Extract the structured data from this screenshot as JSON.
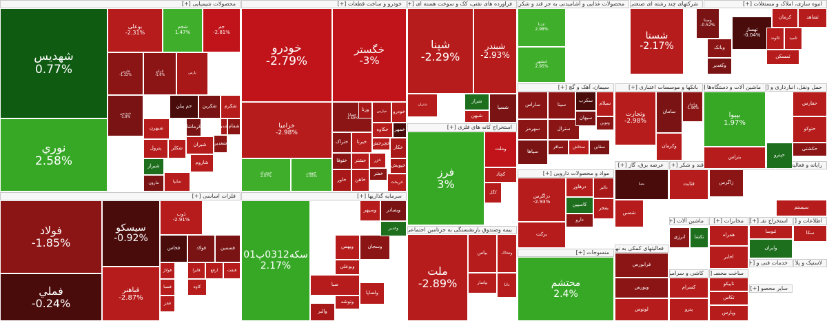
{
  "sectors": [
    {
      "id": "s1",
      "label": "محصولات شیمیایی [+]"
    },
    {
      "id": "s2",
      "label": "خودرو و ساخت قطعات [+]"
    },
    {
      "id": "s3",
      "label": "فراورده های نفتی، کک و سوخت هسته ای [+]"
    },
    {
      "id": "s4",
      "label": "محصولات غذایی و آشامیدنی به جز قند و شکر [+]"
    },
    {
      "id": "s5",
      "label": "شرکتهای چند رشته ای صنعتی [+]"
    },
    {
      "id": "s6",
      "label": "انبوه سازی، املاک و مستغلات [+]"
    },
    {
      "id": "s7",
      "label": "فلزات اساسی [+]"
    },
    {
      "id": "s8",
      "label": "سرمایه گذاریها [+]"
    },
    {
      "id": "s9",
      "label": "استخراج کانه های فلزی [+]"
    },
    {
      "id": "s10",
      "label": "سیمان، آهک و گچ [+]"
    },
    {
      "id": "s11",
      "label": "بانکها و موسسات اعتباری [+]"
    },
    {
      "id": "s12",
      "label": "ماشین آلات و دستگاه‌ها [+]"
    },
    {
      "id": "s13",
      "label": "حمل ونقل، انبارداری و [+]"
    },
    {
      "id": "s14",
      "label": "مواد و محصولات دارویی [+]"
    },
    {
      "id": "s15",
      "label": "عرضه برق، گاز [+]"
    },
    {
      "id": "s16",
      "label": "قند و شکر [+]"
    },
    {
      "id": "s17",
      "label": "زراعت و خدمات [+]"
    },
    {
      "id": "s18",
      "label": "رایانه و فعالیتهای [+]"
    },
    {
      "id": "s19",
      "label": "بیمه وصندوق بازنشستگی به جزتامین اجتماعی [+]"
    },
    {
      "id": "s20",
      "label": "منسوجات [+]"
    },
    {
      "id": "s21",
      "label": "فعالیتهای کمکی به نهـ [+]"
    },
    {
      "id": "s22",
      "label": "ماشین آلات [+]"
    },
    {
      "id": "s23",
      "label": "مخابرات [+]"
    },
    {
      "id": "s24",
      "label": "استخراج نفـ [+]"
    },
    {
      "id": "s25",
      "label": "اطلاعات و [+]"
    },
    {
      "id": "s26",
      "label": "خدمات فنی و [+]"
    },
    {
      "id": "s27",
      "label": "ساخت محصـ [+]"
    },
    {
      "id": "s28",
      "label": "کاشی و سرامیک [+]"
    },
    {
      "id": "s29",
      "label": "سایر محصو [+]"
    },
    {
      "id": "s30",
      "label": "لاستیک و پلا [+]"
    }
  ],
  "tiles": [
    {
      "id": "t1",
      "symbol": "شهدیس",
      "change": "0.77%",
      "color": "#0f5b12",
      "fs": 17
    },
    {
      "id": "t2",
      "symbol": "نوري",
      "change": "2.58%",
      "color": "#37a826",
      "fs": 17
    },
    {
      "id": "t3",
      "symbol": "بوعلی",
      "change": "-2.31%",
      "color": "#b71c1c",
      "fs": 8
    },
    {
      "id": "t4",
      "symbol": "شجم",
      "change": "1.47%",
      "color": "#3fae2a",
      "fs": 7
    },
    {
      "id": "t5",
      "symbol": "جم",
      "change": "-2.81%",
      "color": "#c0141a",
      "fs": 7
    },
    {
      "id": "t6",
      "symbol": "فارس",
      "change": "-1.32%",
      "color": "#8b1414",
      "fs": 5
    },
    {
      "id": "t7",
      "symbol": "تاپیکو",
      "change": "-1.6%",
      "color": "#8b1414",
      "fs": 5
    },
    {
      "id": "t8",
      "symbol": "پارس",
      "change": "",
      "color": "#a81818",
      "fs": 5
    },
    {
      "id": "t9",
      "symbol": "شپدیس",
      "change": "-1.9%",
      "color": "#7a1414",
      "fs": 5
    },
    {
      "id": "t10",
      "symbol": "جم پیلن",
      "change": "",
      "color": "#4a0b0b",
      "fs": 7
    },
    {
      "id": "t11",
      "symbol": "شکربن",
      "change": "",
      "color": "#7a1414",
      "fs": 7
    },
    {
      "id": "t12",
      "symbol": "شکرم",
      "change": "",
      "color": "#b71c1c",
      "fs": 7
    },
    {
      "id": "t13",
      "symbol": "شفام",
      "change": "",
      "color": "#8b1414",
      "fs": 7
    },
    {
      "id": "t14",
      "symbol": "شبهرن",
      "change": "",
      "color": "#b71c1c",
      "fs": 7
    },
    {
      "id": "t15",
      "symbol": "شدو",
      "change": "",
      "color": "#a81818",
      "fs": 6
    },
    {
      "id": "t16",
      "symbol": "پترول",
      "change": "",
      "color": "#b71c1c",
      "fs": 7
    },
    {
      "id": "t17",
      "symbol": "کرماشا",
      "change": "",
      "color": "#7a1414",
      "fs": 7
    },
    {
      "id": "t18",
      "symbol": "شکلر",
      "change": "",
      "color": "#b71c1c",
      "fs": 7
    },
    {
      "id": "t19",
      "symbol": "شیران",
      "change": "",
      "color": "#b71c1c",
      "fs": 7
    },
    {
      "id": "t20",
      "symbol": "شغدیر",
      "change": "",
      "color": "#8b1414",
      "fs": 7
    },
    {
      "id": "t21",
      "symbol": "شاروم",
      "change": "",
      "color": "#b71c1c",
      "fs": 7
    },
    {
      "id": "t22",
      "symbol": "شیراز",
      "change": "",
      "color": "#1d6e1d",
      "fs": 7
    },
    {
      "id": "t23",
      "symbol": "سایپا",
      "change": "",
      "color": "#b71c1c",
      "fs": 6
    },
    {
      "id": "t24",
      "symbol": "ماروں",
      "change": "",
      "color": "#7a1414",
      "fs": 6
    },
    {
      "id": "t25",
      "symbol": "خودرو",
      "change": "-2.79%",
      "color": "#c0141a",
      "fs": 17
    },
    {
      "id": "t26",
      "symbol": "خگستر",
      "change": "-3%",
      "color": "#c0141a",
      "fs": 15
    },
    {
      "id": "t27",
      "symbol": "خزامیا",
      "change": "-2.98%",
      "color": "#b71c1c",
      "fs": 9
    },
    {
      "id": "t28",
      "symbol": "خساپا",
      "change": "-1.69%",
      "color": "#8b1414",
      "fs": 5
    },
    {
      "id": "t29",
      "symbol": "خپارس",
      "change": "",
      "color": "#a81818",
      "fs": 5
    },
    {
      "id": "t30",
      "symbol": "خمحرکه",
      "change": "2.07%",
      "color": "#3fae2a",
      "fs": 5
    },
    {
      "id": "t31",
      "symbol": "خبهمن",
      "change": "1.55%",
      "color": "#3fae2a",
      "fs": 5
    },
    {
      "id": "t32",
      "symbol": "خکاوه",
      "change": "",
      "color": "#b71c1c",
      "fs": 7
    },
    {
      "id": "t33",
      "symbol": "خودرو",
      "change": "",
      "color": "#b71c1c",
      "fs": 7
    },
    {
      "id": "t34",
      "symbol": "ورنا",
      "change": "",
      "color": "#a81818",
      "fs": 7
    },
    {
      "id": "t35",
      "symbol": "خمهر",
      "change": "",
      "color": "#4a0b0b",
      "fs": 7
    },
    {
      "id": "t36",
      "symbol": "ختراک",
      "change": "",
      "color": "#8b1414",
      "fs": 7
    },
    {
      "id": "t37",
      "symbol": "خیرنا",
      "change": "",
      "color": "#b71c1c",
      "fs": 7
    },
    {
      "id": "t38",
      "symbol": "خچرخش",
      "change": "",
      "color": "#b71c1c",
      "fs": 7
    },
    {
      "id": "t39",
      "symbol": "ختوقا",
      "change": "",
      "color": "#8b1414",
      "fs": 7
    },
    {
      "id": "t40",
      "symbol": "خشتر",
      "change": "",
      "color": "#b71c1c",
      "fs": 7
    },
    {
      "id": "t41",
      "symbol": "خکار",
      "change": "",
      "color": "#a81818",
      "fs": 7
    },
    {
      "id": "t42",
      "symbol": "خزر",
      "change": "",
      "color": "#b71c1c",
      "fs": 6
    },
    {
      "id": "t43",
      "symbol": "خپویش",
      "change": "",
      "color": "#a81818",
      "fs": 7
    },
    {
      "id": "t44",
      "symbol": "خاهن",
      "change": "",
      "color": "#b71c1c",
      "fs": 7
    },
    {
      "id": "t45",
      "symbol": "خفنر",
      "change": "",
      "color": "#8b1414",
      "fs": 7
    },
    {
      "id": "t46",
      "symbol": "خاور",
      "change": "",
      "color": "#a81818",
      "fs": 7
    },
    {
      "id": "t47",
      "symbol": "خریخت",
      "change": "",
      "color": "#b71c1c",
      "fs": 6
    },
    {
      "id": "t48",
      "symbol": "شپنا",
      "change": "-2.29%",
      "color": "#b71c1c",
      "fs": 16
    },
    {
      "id": "t49",
      "symbol": "شبندر",
      "change": "-2.93%",
      "color": "#b71c1c",
      "fs": 12
    },
    {
      "id": "t50",
      "symbol": "شتران",
      "change": "",
      "color": "#b71c1c",
      "fs": 5
    },
    {
      "id": "t51",
      "symbol": "شراز",
      "change": "",
      "color": "#1d6e1d",
      "fs": 7
    },
    {
      "id": "t52",
      "symbol": "شبهن",
      "change": "",
      "color": "#b71c1c",
      "fs": 7
    },
    {
      "id": "t53",
      "symbol": "شسپا",
      "change": "",
      "color": "#7a1414",
      "fs": 7
    },
    {
      "id": "t54",
      "symbol": "عدنا",
      "change": "2.98%",
      "color": "#3fae2a",
      "fs": 6
    },
    {
      "id": "t55",
      "symbol": "غبشهر",
      "change": "2.95%",
      "color": "#3fae2a",
      "fs": 6
    },
    {
      "id": "t56",
      "symbol": "شستا",
      "change": "-2.17%",
      "color": "#b71c1c",
      "fs": 14
    },
    {
      "id": "t57",
      "symbol": "وصنا",
      "change": "-0.52%",
      "color": "#7a1414",
      "fs": 6
    },
    {
      "id": "t58",
      "symbol": "وبانک",
      "change": "",
      "color": "#8b1414",
      "fs": 7
    },
    {
      "id": "t59",
      "symbol": "وکغدیر",
      "change": "",
      "color": "#7a1414",
      "fs": 7
    },
    {
      "id": "t60",
      "symbol": "ثشاهد",
      "change": "",
      "color": "#b71c1c",
      "fs": 7
    },
    {
      "id": "t61",
      "symbol": "کرمان",
      "change": "",
      "color": "#b71c1c",
      "fs": 7
    },
    {
      "id": "t62",
      "symbol": "ثهساز",
      "change": "-0.04%",
      "color": "#4a0b0b",
      "fs": 7
    },
    {
      "id": "t63",
      "symbol": "ثالوند",
      "change": "",
      "color": "#b71c1c",
      "fs": 6
    },
    {
      "id": "t64",
      "symbol": "ثامید",
      "change": "",
      "color": "#b71c1c",
      "fs": 6
    },
    {
      "id": "t65",
      "symbol": "ثمسکن",
      "change": "",
      "color": "#b71c1c",
      "fs": 7
    },
    {
      "id": "t66",
      "symbol": "فولاد",
      "change": "-1.85%",
      "color": "#8b1414",
      "fs": 16
    },
    {
      "id": "t67",
      "symbol": "فملي",
      "change": "-0.24%",
      "color": "#4a0b0b",
      "fs": 16
    },
    {
      "id": "t68",
      "symbol": "سیسکو",
      "change": "-0.92%",
      "color": "#4a0b0b",
      "fs": 14
    },
    {
      "id": "t69",
      "symbol": "فباهنر",
      "change": "-2.87%",
      "color": "#b71c1c",
      "fs": 10
    },
    {
      "id": "t70",
      "symbol": "ذوب",
      "change": "-2.91%",
      "color": "#b71c1c",
      "fs": 7
    },
    {
      "id": "t71",
      "symbol": "فخاس",
      "change": "",
      "color": "#4a0b0b",
      "fs": 7
    },
    {
      "id": "t72",
      "symbol": "فولاد",
      "change": "",
      "color": "#7a1414",
      "fs": 7
    },
    {
      "id": "t73",
      "symbol": "فسمین",
      "change": "",
      "color": "#7a1414",
      "fs": 7
    },
    {
      "id": "t74",
      "symbol": "فایرا",
      "change": "",
      "color": "#b71c1c",
      "fs": 6
    },
    {
      "id": "t75",
      "symbol": "ارفع",
      "change": "",
      "color": "#b71c1c",
      "fs": 6
    },
    {
      "id": "t76",
      "symbol": "فنفت",
      "change": "",
      "color": "#b71c1c",
      "fs": 6
    },
    {
      "id": "t77",
      "symbol": "فولاژ",
      "change": "",
      "color": "#b71c1c",
      "fs": 6
    },
    {
      "id": "t78",
      "symbol": "فسبا",
      "change": "",
      "color": "#b71c1c",
      "fs": 6
    },
    {
      "id": "t79",
      "symbol": "کاوه",
      "change": "",
      "color": "#b71c1c",
      "fs": 6
    },
    {
      "id": "t80",
      "symbol": "فجر",
      "change": "",
      "color": "#b71c1c",
      "fs": 6
    },
    {
      "id": "t81",
      "symbol": "سکه0312پ01",
      "change": "2.17%",
      "color": "#37a826",
      "fs": 14
    },
    {
      "id": "t82",
      "symbol": "وسپهر",
      "change": "",
      "color": "#b71c1c",
      "fs": 7
    },
    {
      "id": "t83",
      "symbol": "وبصادر",
      "change": "",
      "color": "#7a1414",
      "fs": 7
    },
    {
      "id": "t84",
      "symbol": "وسجان",
      "change": "",
      "color": "#8b1414",
      "fs": 7
    },
    {
      "id": "t85",
      "symbol": "وغدیر",
      "change": "",
      "color": "#1d6e1d",
      "fs": 6
    },
    {
      "id": "t86",
      "symbol": "وبهمن",
      "change": "",
      "color": "#b71c1c",
      "fs": 7
    },
    {
      "id": "t87",
      "symbol": "وبوعلی",
      "change": "",
      "color": "#b71c1c",
      "fs": 7
    },
    {
      "id": "t88",
      "symbol": "صبا",
      "change": "",
      "color": "#b71c1c",
      "fs": 7
    },
    {
      "id": "t89",
      "symbol": "وتوشه",
      "change": "",
      "color": "#b71c1c",
      "fs": 7
    },
    {
      "id": "t90",
      "symbol": "والبر",
      "change": "",
      "color": "#a81818",
      "fs": 7
    },
    {
      "id": "t91",
      "symbol": "ولساپا",
      "change": "",
      "color": "#b71c1c",
      "fs": 7
    },
    {
      "id": "t92",
      "symbol": "فرز",
      "change": "3%",
      "color": "#37a826",
      "fs": 16
    },
    {
      "id": "t93",
      "symbol": "وملت",
      "change": "",
      "color": "#c0141a",
      "fs": 7
    },
    {
      "id": "t94",
      "symbol": "کچاد",
      "change": "",
      "color": "#b71c1c",
      "fs": 7
    },
    {
      "id": "t95",
      "symbol": "کگل",
      "change": "",
      "color": "#b71c1c",
      "fs": 6
    },
    {
      "id": "t96",
      "symbol": "ملت",
      "change": "-2.89%",
      "color": "#b71c1c",
      "fs": 16
    },
    {
      "id": "t97",
      "symbol": "بیاس",
      "change": "",
      "color": "#b71c1c",
      "fs": 7
    },
    {
      "id": "t98",
      "symbol": "بپاسار",
      "change": "",
      "color": "#b71c1c",
      "fs": 6
    },
    {
      "id": "t99",
      "symbol": "دانا",
      "change": "",
      "color": "#b71c1c",
      "fs": 6
    },
    {
      "id": "t100",
      "symbol": "وتحاک",
      "change": "",
      "color": "#b71c1c",
      "fs": 6
    },
    {
      "id": "t101",
      "symbol": "ساراس",
      "change": "",
      "color": "#8b1414",
      "fs": 7
    },
    {
      "id": "t102",
      "symbol": "سیتا",
      "change": "",
      "color": "#8b1414",
      "fs": 7
    },
    {
      "id": "t103",
      "symbol": "سترال",
      "change": "",
      "color": "#8b1414",
      "fs": 7
    },
    {
      "id": "t104",
      "symbol": "سکرب",
      "change": "",
      "color": "#4a0b0b",
      "fs": 7
    },
    {
      "id": "t105",
      "symbol": "سبهان",
      "change": "",
      "color": "#7a1414",
      "fs": 7
    },
    {
      "id": "t106",
      "symbol": "سیلام",
      "change": "",
      "color": "#b71c1c",
      "fs": 7
    },
    {
      "id": "t107",
      "symbol": "سهرمز",
      "change": "",
      "color": "#8b1414",
      "fs": 7
    },
    {
      "id": "t108",
      "symbol": "سپاها",
      "change": "",
      "color": "#7a1414",
      "fs": 7
    },
    {
      "id": "t109",
      "symbol": "سباقر",
      "change": "",
      "color": "#8b1414",
      "fs": 6
    },
    {
      "id": "t110",
      "symbol": "سخاش",
      "change": "",
      "color": "#b71c1c",
      "fs": 6
    },
    {
      "id": "t111",
      "symbol": "سقاین",
      "change": "",
      "color": "#7a1414",
      "fs": 6
    },
    {
      "id": "t112",
      "symbol": "ونوین",
      "change": "",
      "color": "#8b1414",
      "fs": 6
    },
    {
      "id": "t113",
      "symbol": "وتجارت",
      "change": "-2.98%",
      "color": "#b71c1c",
      "fs": 9
    },
    {
      "id": "t114",
      "symbol": "سامان",
      "change": "",
      "color": "#7a1414",
      "fs": 7
    },
    {
      "id": "t115",
      "symbol": "وکرمان",
      "change": "",
      "color": "#b71c1c",
      "fs": 7
    },
    {
      "id": "t116",
      "symbol": "وپاسار",
      "change": "-1.96%",
      "color": "#8b1414",
      "fs": 5
    },
    {
      "id": "t117",
      "symbol": "بپیوا",
      "change": "1.97%",
      "color": "#37a826",
      "fs": 10
    },
    {
      "id": "t118",
      "symbol": "بتراس",
      "change": "",
      "color": "#b71c1c",
      "fs": 7
    },
    {
      "id": "t119",
      "symbol": "حفارس",
      "change": "",
      "color": "#b71c1c",
      "fs": 7
    },
    {
      "id": "t120",
      "symbol": "حتوكو",
      "change": "",
      "color": "#b71c1c",
      "fs": 7
    },
    {
      "id": "t121",
      "symbol": "حکشتی",
      "change": "",
      "color": "#8b1414",
      "fs": 7
    },
    {
      "id": "t122",
      "symbol": "حپترو",
      "change": "",
      "color": "#1d6e1d",
      "fs": 7
    },
    {
      "id": "t123",
      "symbol": "دزاگرس",
      "change": "-2.93%",
      "color": "#b71c1c",
      "fs": 7
    },
    {
      "id": "t124",
      "symbol": "درهاور",
      "change": "",
      "color": "#b71c1c",
      "fs": 7
    },
    {
      "id": "t125",
      "symbol": "کاسپین",
      "change": "",
      "color": "#1d6e1d",
      "fs": 7
    },
    {
      "id": "t126",
      "symbol": "دارو",
      "change": "",
      "color": "#8b1414",
      "fs": 7
    },
    {
      "id": "t127",
      "symbol": "برکت",
      "change": "",
      "color": "#b71c1c",
      "fs": 7
    },
    {
      "id": "t128",
      "symbol": "دالبر",
      "change": "",
      "color": "#a81818",
      "fs": 6
    },
    {
      "id": "t129",
      "symbol": "بمپنا",
      "change": "",
      "color": "#4a0b0b",
      "fs": 5
    },
    {
      "id": "t130",
      "symbol": "بفجر",
      "change": "",
      "color": "#b71c1c",
      "fs": 7
    },
    {
      "id": "t131",
      "symbol": "محتشم",
      "change": "2.4%",
      "color": "#37a826",
      "fs": 14
    },
    {
      "id": "t132",
      "symbol": "فرابورس",
      "change": "",
      "color": "#8b1414",
      "fs": 7
    },
    {
      "id": "t133",
      "symbol": "وبورس",
      "change": "",
      "color": "#8b1414",
      "fs": 7
    },
    {
      "id": "t134",
      "symbol": "لوتوس",
      "change": "",
      "color": "#b71c1c",
      "fs": 7
    },
    {
      "id": "t135",
      "symbol": "انرژی",
      "change": "",
      "color": "#8b1414",
      "fs": 7
    },
    {
      "id": "t136",
      "symbol": "شمس",
      "change": "",
      "color": "#b71c1c",
      "fs": 7
    },
    {
      "id": "t137",
      "symbol": "قثابت",
      "change": "",
      "color": "#b71c1c",
      "fs": 7
    },
    {
      "id": "t138",
      "symbol": "تکشا",
      "change": "",
      "color": "#1d6e1d",
      "fs": 7
    },
    {
      "id": "t139",
      "symbol": "زاگرس",
      "change": "",
      "color": "#8b1414",
      "fs": 7
    },
    {
      "id": "t140",
      "symbol": "سیستم",
      "change": "",
      "color": "#b71c1c",
      "fs": 7
    },
    {
      "id": "t141",
      "symbol": "همراه",
      "change": "",
      "color": "#b71c1c",
      "fs": 7
    },
    {
      "id": "t142",
      "symbol": "ثنوسا",
      "change": "",
      "color": "#b71c1c",
      "fs": 7
    },
    {
      "id": "t143",
      "symbol": "اخابر",
      "change": "",
      "color": "#b71c1c",
      "fs": 7
    },
    {
      "id": "t144",
      "symbol": "وایران",
      "change": "",
      "color": "#1d6e1d",
      "fs": 7
    },
    {
      "id": "t145",
      "symbol": "سکا",
      "change": "",
      "color": "#b71c1c",
      "fs": 7
    },
    {
      "id": "t146",
      "symbol": "تاپیکو",
      "change": "",
      "color": "#b71c1c",
      "fs": 7
    },
    {
      "id": "t147",
      "symbol": "کسرام",
      "change": "",
      "color": "#b71c1c",
      "fs": 7
    },
    {
      "id": "t148",
      "symbol": "پترو",
      "change": "",
      "color": "#b71c1c",
      "fs": 7
    },
    {
      "id": "t149",
      "symbol": "تکاس",
      "change": "",
      "color": "#b71c1c",
      "fs": 7
    },
    {
      "id": "t150",
      "symbol": "وپارس",
      "change": "",
      "color": "#b71c1c",
      "fs": 7
    }
  ]
}
